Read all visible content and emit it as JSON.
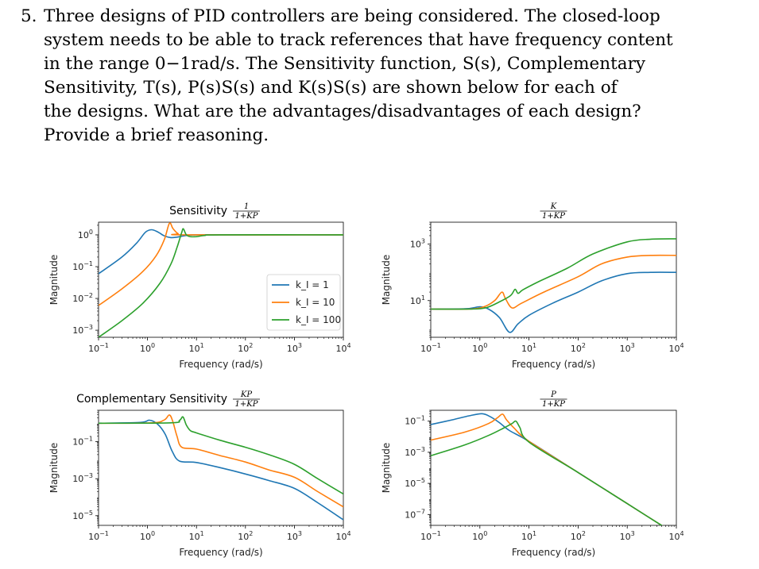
{
  "question": {
    "number": "5.",
    "lines": [
      "Three designs of PID controllers are being considered. The closed-loop",
      "system needs to be able to track references that have frequency content",
      "in the range 0−1rad/s. The Sensitivity function, S(s), Complementary",
      "Sensitivity, T(s), P(s)S(s) and K(s)S(s) are shown below for each of",
      "the designs. What are the advantages/disadvantages of each design?",
      "Provide a brief reasoning."
    ]
  },
  "colors": {
    "ki_1": "#1f77b4",
    "ki_10": "#ff7f0e",
    "ki_100": "#2ca02c"
  },
  "legend": {
    "placement": "inside lower-right of top-left plot",
    "entries": [
      "k_I = 1",
      "k_I = 10",
      "k_I = 100"
    ]
  },
  "chart_data": [
    {
      "id": "sensitivity",
      "type": "line",
      "title_prefix": "Sensitivity",
      "title_fraction": {
        "numerator": "1",
        "denominator": "1+KP"
      },
      "xlabel": "Frequency (rad/s)",
      "ylabel": "Magnitude",
      "xscale": "log",
      "yscale": "log",
      "xlim": [
        0.1,
        10000
      ],
      "ylim": [
        0.0006,
        2.5
      ],
      "xticks": [
        {
          "v": 0.1,
          "m": "10",
          "e": "−1"
        },
        {
          "v": 1,
          "m": "10",
          "e": "0"
        },
        {
          "v": 10,
          "m": "10",
          "e": "1"
        },
        {
          "v": 100,
          "m": "10",
          "e": "2"
        },
        {
          "v": 1000,
          "m": "10",
          "e": "3"
        },
        {
          "v": 10000,
          "m": "10",
          "e": "4"
        }
      ],
      "yticks": [
        {
          "v": 0.001,
          "m": "10",
          "e": "−3"
        },
        {
          "v": 0.01,
          "m": "10",
          "e": "−2"
        },
        {
          "v": 0.1,
          "m": "10",
          "e": "−1"
        },
        {
          "v": 1,
          "m": "10",
          "e": "0"
        }
      ],
      "series": [
        {
          "name": "k_I = 1",
          "color": "#1f77b4",
          "points": [
            [
              0.1,
              0.06
            ],
            [
              0.3,
              0.2
            ],
            [
              0.6,
              0.55
            ],
            [
              0.9,
              1.2
            ],
            [
              1.2,
              1.45
            ],
            [
              1.6,
              1.25
            ],
            [
              2.2,
              0.93
            ],
            [
              3,
              0.82
            ],
            [
              4,
              0.85
            ],
            [
              6,
              0.95
            ],
            [
              10,
              1.0
            ],
            [
              100,
              1.0
            ],
            [
              10000,
              1.0
            ]
          ]
        },
        {
          "name": "k_I = 10",
          "color": "#ff7f0e",
          "points": [
            [
              0.1,
              0.006
            ],
            [
              0.3,
              0.02
            ],
            [
              0.8,
              0.07
            ],
            [
              1.5,
              0.22
            ],
            [
              2.2,
              0.7
            ],
            [
              2.8,
              2.3
            ],
            [
              3.3,
              1.6
            ],
            [
              4.2,
              1.1
            ],
            [
              6,
              1.0
            ],
            [
              10000,
              1.0
            ]
          ]
        },
        {
          "name": "k_I = 100",
          "color": "#2ca02c",
          "points": [
            [
              0.1,
              0.0006
            ],
            [
              0.3,
              0.002
            ],
            [
              0.8,
              0.007
            ],
            [
              1.8,
              0.03
            ],
            [
              3,
              0.12
            ],
            [
              4,
              0.4
            ],
            [
              5,
              1.2
            ],
            [
              5.4,
              1.55
            ],
            [
              6.2,
              1.0
            ],
            [
              7.5,
              0.88
            ],
            [
              10,
              0.88
            ],
            [
              15,
              0.96
            ],
            [
              30,
              1.0
            ],
            [
              10000,
              1.0
            ]
          ]
        }
      ]
    },
    {
      "id": "ks",
      "type": "line",
      "title_fraction": {
        "numerator": "K",
        "denominator": "1+KP"
      },
      "xlabel": "Frequency (rad/s)",
      "ylabel": "Magnitude",
      "xscale": "log",
      "yscale": "log",
      "xlim": [
        0.1,
        10000
      ],
      "ylim": [
        0.5,
        6000
      ],
      "xticks": [
        {
          "v": 0.1,
          "m": "10",
          "e": "−1"
        },
        {
          "v": 1,
          "m": "10",
          "e": "0"
        },
        {
          "v": 10,
          "m": "10",
          "e": "1"
        },
        {
          "v": 100,
          "m": "10",
          "e": "2"
        },
        {
          "v": 1000,
          "m": "10",
          "e": "3"
        },
        {
          "v": 10000,
          "m": "10",
          "e": "4"
        }
      ],
      "yticks": [
        {
          "v": 10,
          "m": "10",
          "e": "1"
        },
        {
          "v": 1000,
          "m": "10",
          "e": "3"
        }
      ],
      "series": [
        {
          "name": "k_I = 1",
          "color": "#1f77b4",
          "points": [
            [
              0.1,
              5
            ],
            [
              0.5,
              5.1
            ],
            [
              1,
              6
            ],
            [
              1.5,
              5
            ],
            [
              2.5,
              2.5
            ],
            [
              4,
              0.75
            ],
            [
              6,
              1.5
            ],
            [
              10,
              3
            ],
            [
              30,
              8
            ],
            [
              100,
              20
            ],
            [
              300,
              50
            ],
            [
              1000,
              90
            ],
            [
              3000,
              100
            ],
            [
              10000,
              100
            ]
          ]
        },
        {
          "name": "k_I = 10",
          "color": "#ff7f0e",
          "points": [
            [
              0.1,
              5
            ],
            [
              0.6,
              5
            ],
            [
              1.2,
              6
            ],
            [
              2,
              10
            ],
            [
              2.8,
              20
            ],
            [
              3.3,
              12
            ],
            [
              4.5,
              5.5
            ],
            [
              7,
              8
            ],
            [
              20,
              20
            ],
            [
              100,
              70
            ],
            [
              300,
              200
            ],
            [
              1000,
              350
            ],
            [
              3000,
              400
            ],
            [
              10000,
              400
            ]
          ]
        },
        {
          "name": "k_I = 100",
          "color": "#2ca02c",
          "points": [
            [
              0.1,
              5
            ],
            [
              0.6,
              5
            ],
            [
              1.3,
              5.5
            ],
            [
              2.5,
              9
            ],
            [
              4.2,
              15
            ],
            [
              5.2,
              25
            ],
            [
              6,
              18
            ],
            [
              7.5,
              24
            ],
            [
              15,
              45
            ],
            [
              60,
              140
            ],
            [
              200,
              450
            ],
            [
              1000,
              1200
            ],
            [
              3000,
              1500
            ],
            [
              10000,
              1550
            ]
          ]
        }
      ]
    },
    {
      "id": "complementary",
      "type": "line",
      "title_prefix": "Complementary Sensitivity",
      "title_fraction": {
        "numerator": "KP",
        "denominator": "1+KP"
      },
      "xlabel": "Frequency (rad/s)",
      "ylabel": "Magnitude",
      "xscale": "log",
      "yscale": "log",
      "xlim": [
        0.1,
        10000
      ],
      "ylim": [
        3e-06,
        5
      ],
      "xticks": [
        {
          "v": 0.1,
          "m": "10",
          "e": "−1"
        },
        {
          "v": 1,
          "m": "10",
          "e": "0"
        },
        {
          "v": 10,
          "m": "10",
          "e": "1"
        },
        {
          "v": 100,
          "m": "10",
          "e": "2"
        },
        {
          "v": 1000,
          "m": "10",
          "e": "3"
        },
        {
          "v": 10000,
          "m": "10",
          "e": "4"
        }
      ],
      "yticks": [
        {
          "v": 1e-05,
          "m": "10",
          "e": "−5"
        },
        {
          "v": 0.001,
          "m": "10",
          "e": "−3"
        },
        {
          "v": 0.1,
          "m": "10",
          "e": "−1"
        }
      ],
      "series": [
        {
          "name": "k_I = 1",
          "color": "#1f77b4",
          "points": [
            [
              0.1,
              1.0
            ],
            [
              0.7,
              1.1
            ],
            [
              1.1,
              1.45
            ],
            [
              1.6,
              0.9
            ],
            [
              2.3,
              0.25
            ],
            [
              3.2,
              0.03
            ],
            [
              4.5,
              0.009
            ],
            [
              10,
              0.0075
            ],
            [
              30,
              0.004
            ],
            [
              100,
              0.0018
            ],
            [
              300,
              0.0008
            ],
            [
              1000,
              0.0003
            ],
            [
              3000,
              5e-05
            ],
            [
              10000,
              6e-06
            ]
          ]
        },
        {
          "name": "k_I = 10",
          "color": "#ff7f0e",
          "points": [
            [
              0.1,
              1.0
            ],
            [
              1.2,
              1.05
            ],
            [
              2.2,
              1.5
            ],
            [
              2.8,
              2.8
            ],
            [
              3.3,
              1.2
            ],
            [
              4,
              0.2
            ],
            [
              5,
              0.05
            ],
            [
              10,
              0.04
            ],
            [
              30,
              0.018
            ],
            [
              100,
              0.008
            ],
            [
              300,
              0.003
            ],
            [
              1000,
              0.0012
            ],
            [
              3000,
              0.0002
            ],
            [
              10000,
              3e-05
            ]
          ]
        },
        {
          "name": "k_I = 100",
          "color": "#2ca02c",
          "points": [
            [
              0.1,
              1.0
            ],
            [
              3,
              1.05
            ],
            [
              4.5,
              1.4
            ],
            [
              5.3,
              2.2
            ],
            [
              6.2,
              0.8
            ],
            [
              7.5,
              0.4
            ],
            [
              10,
              0.3
            ],
            [
              30,
              0.12
            ],
            [
              100,
              0.05
            ],
            [
              300,
              0.02
            ],
            [
              1000,
              0.006
            ],
            [
              3000,
              0.001
            ],
            [
              10000,
              0.00015
            ]
          ]
        }
      ]
    },
    {
      "id": "ps",
      "type": "line",
      "title_fraction": {
        "numerator": "P",
        "denominator": "1+KP"
      },
      "xlabel": "Frequency (rad/s)",
      "ylabel": "Magnitude",
      "xscale": "log",
      "yscale": "log",
      "xlim": [
        0.1,
        10000
      ],
      "ylim": [
        2e-08,
        0.5
      ],
      "xticks": [
        {
          "v": 0.1,
          "m": "10",
          "e": "−1"
        },
        {
          "v": 1,
          "m": "10",
          "e": "0"
        },
        {
          "v": 10,
          "m": "10",
          "e": "1"
        },
        {
          "v": 100,
          "m": "10",
          "e": "2"
        },
        {
          "v": 1000,
          "m": "10",
          "e": "3"
        },
        {
          "v": 10000,
          "m": "10",
          "e": "4"
        }
      ],
      "yticks": [
        {
          "v": 1e-07,
          "m": "10",
          "e": "−7"
        },
        {
          "v": 1e-05,
          "m": "10",
          "e": "−5"
        },
        {
          "v": 0.001,
          "m": "10",
          "e": "−3"
        },
        {
          "v": 0.1,
          "m": "10",
          "e": "−1"
        }
      ],
      "series": [
        {
          "name": "k_I = 1",
          "color": "#1f77b4",
          "points": [
            [
              0.1,
              0.06
            ],
            [
              0.3,
              0.13
            ],
            [
              0.6,
              0.22
            ],
            [
              1.1,
              0.3
            ],
            [
              1.6,
              0.2
            ],
            [
              2.5,
              0.08
            ],
            [
              4,
              0.025
            ],
            [
              10,
              0.005
            ],
            [
              100,
              5e-05
            ],
            [
              1000,
              5e-07
            ],
            [
              10000,
              5e-09
            ]
          ]
        },
        {
          "name": "k_I = 10",
          "color": "#ff7f0e",
          "points": [
            [
              0.1,
              0.006
            ],
            [
              0.5,
              0.02
            ],
            [
              1.5,
              0.07
            ],
            [
              2.3,
              0.17
            ],
            [
              2.9,
              0.28
            ],
            [
              3.5,
              0.12
            ],
            [
              5,
              0.035
            ],
            [
              10,
              0.005
            ],
            [
              100,
              5e-05
            ],
            [
              1000,
              5e-07
            ],
            [
              10000,
              5e-09
            ]
          ]
        },
        {
          "name": "k_I = 100",
          "color": "#2ca02c",
          "points": [
            [
              0.1,
              0.0006
            ],
            [
              0.5,
              0.003
            ],
            [
              1.5,
              0.012
            ],
            [
              3,
              0.035
            ],
            [
              4.5,
              0.07
            ],
            [
              5.4,
              0.1
            ],
            [
              6.5,
              0.04
            ],
            [
              10,
              0.0045
            ],
            [
              100,
              5e-05
            ],
            [
              1000,
              5e-07
            ],
            [
              10000,
              5e-09
            ]
          ]
        }
      ]
    }
  ]
}
